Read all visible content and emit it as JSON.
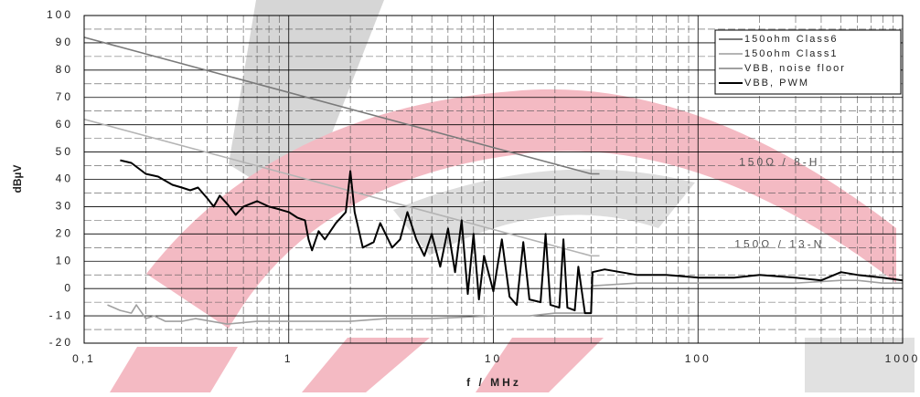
{
  "chart_data": {
    "type": "line",
    "x_label": "f / MHz",
    "y_label": "dBµV",
    "xlim": [
      0.1,
      1000
    ],
    "ylim": [
      -20,
      100
    ],
    "log_x": true,
    "grid": true,
    "xticks": [
      {
        "value": 0.1,
        "label": "0,1"
      },
      1,
      10,
      100,
      1000
    ],
    "yticks": [
      -20,
      -10,
      0,
      10,
      20,
      30,
      40,
      50,
      60,
      70,
      80,
      90,
      100
    ],
    "minor_xticks": [
      0.2,
      0.3,
      0.4,
      0.5,
      0.6,
      0.7,
      0.8,
      0.9,
      2,
      3,
      4,
      5,
      6,
      7,
      8,
      9,
      20,
      30,
      40,
      50,
      60,
      70,
      80,
      90,
      200,
      300,
      400,
      500,
      600,
      700,
      800,
      900
    ],
    "minor_yticks": [
      -15,
      -5,
      5,
      15,
      25,
      35,
      45,
      55,
      65,
      75,
      85,
      95
    ],
    "legend": "upper right",
    "annotations": [
      {
        "text": "150Ω / 8-H",
        "x": 250,
        "y": 46
      },
      {
        "text": "150Ω / 13-N",
        "x": 250,
        "y": 16
      }
    ],
    "series": [
      {
        "name": "150ohm Class6",
        "color": "#7a7a7a",
        "x": [
          0.1,
          30,
          33
        ],
        "values": [
          92,
          42,
          42
        ]
      },
      {
        "name": "150ohm Class1",
        "color": "#b4b4b4",
        "x": [
          0.1,
          30,
          33
        ],
        "values": [
          62,
          12,
          12
        ]
      },
      {
        "name": "VBB, noise floor",
        "color": "#a0a0a0",
        "x": [
          0.13,
          0.15,
          0.17,
          0.18,
          0.2,
          0.22,
          0.25,
          0.3,
          0.35,
          0.5,
          0.7,
          1,
          2,
          3,
          5,
          10,
          15,
          20,
          30,
          30.5,
          50,
          100,
          200,
          300,
          500,
          600,
          800,
          1000
        ],
        "values": [
          -6,
          -8,
          -9,
          -6,
          -11,
          -10,
          -12,
          -12,
          -11,
          -13,
          -12,
          -12,
          -12,
          -11,
          -11,
          -10,
          -10,
          -9,
          -9,
          1,
          2,
          2,
          2,
          2,
          3,
          3,
          2,
          2
        ]
      },
      {
        "name": "VBB, PWM",
        "color": "#000000",
        "x": [
          0.15,
          0.17,
          0.2,
          0.23,
          0.27,
          0.3,
          0.33,
          0.36,
          0.4,
          0.43,
          0.46,
          0.5,
          0.55,
          0.6,
          0.7,
          0.8,
          0.9,
          1.0,
          1.1,
          1.2,
          1.25,
          1.3,
          1.4,
          1.5,
          1.7,
          1.9,
          2.0,
          2.1,
          2.3,
          2.6,
          2.8,
          3.2,
          3.5,
          3.8,
          4.2,
          4.6,
          5.0,
          5.5,
          6.0,
          6.5,
          7.0,
          7.5,
          8.0,
          8.5,
          9.0,
          10,
          11,
          12,
          13,
          14,
          15,
          17,
          18,
          19,
          21,
          22,
          23,
          25,
          26,
          28,
          30,
          30.5,
          35,
          50,
          70,
          100,
          150,
          200,
          300,
          400,
          500,
          600,
          800,
          1000
        ],
        "values": [
          47,
          46,
          42,
          41,
          38,
          37,
          36,
          37,
          33,
          30,
          34,
          31,
          27,
          30,
          32,
          30,
          29,
          28,
          26,
          25,
          18,
          14,
          21,
          18,
          24,
          28,
          43,
          28,
          15,
          17,
          24,
          15,
          18,
          28,
          18,
          12,
          20,
          8,
          22,
          6,
          25,
          -2,
          20,
          -4,
          12,
          -1,
          18,
          -3,
          -6,
          17,
          -4,
          -5,
          20,
          -6,
          -7,
          18,
          -7,
          -8,
          8,
          -9,
          -9,
          6,
          7,
          5,
          5,
          4,
          4,
          5,
          4,
          3,
          6,
          5,
          4,
          3
        ]
      }
    ]
  }
}
